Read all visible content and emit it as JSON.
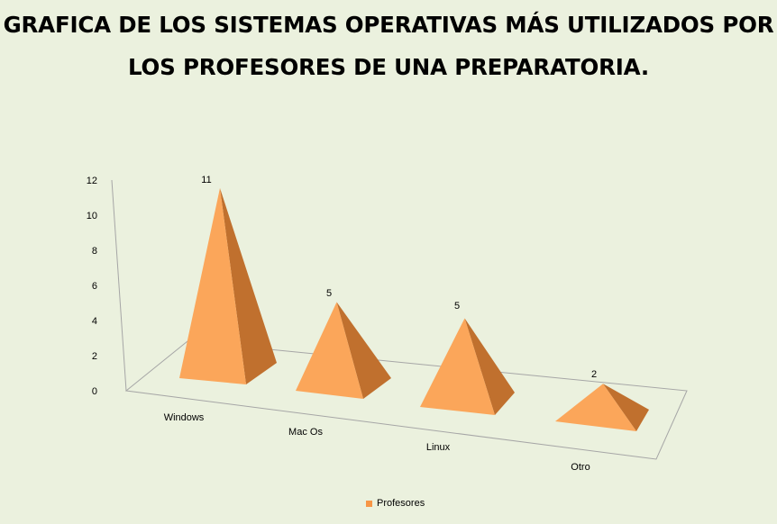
{
  "chart_data": {
    "type": "bar",
    "shape": "pyramid-3d",
    "title_lines": [
      "GRAFICA DE LOS SISTEMAS OPERATIVAS MÁS UTILIZADOS POR",
      "LOS PROFESORES DE UNA PREPARATORIA."
    ],
    "categories": [
      "Windows",
      "Mac Os",
      "Linux",
      "Otro"
    ],
    "series": [
      {
        "name": "Profesores",
        "values": [
          11,
          5,
          5,
          2
        ]
      }
    ],
    "ylim": [
      0,
      12
    ],
    "yticks": [
      0,
      2,
      4,
      6,
      8,
      10,
      12
    ],
    "data_labels": true,
    "legend_position": "bottom",
    "colors": {
      "background": "#ebf1de",
      "front_face": "#fba65a",
      "side_face": "#c0702e",
      "axis": "#a6a6a6",
      "legend_swatch": "#f79646"
    }
  }
}
